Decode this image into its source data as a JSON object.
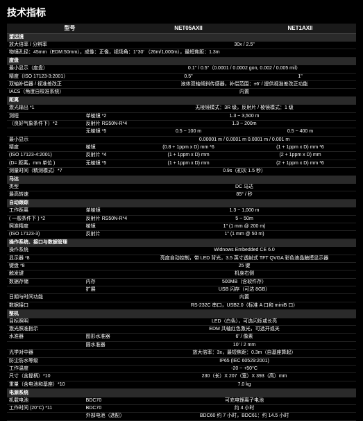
{
  "title": "技术指标",
  "models": {
    "label": "型号",
    "a": "NET05AXII",
    "b": "NET1AXII"
  },
  "sections": [
    {
      "type": "section",
      "label": "望远镜"
    },
    {
      "type": "row",
      "label": "放大倍率 / 分辨率",
      "sub": "",
      "val": "30x / 2.5\""
    },
    {
      "type": "row",
      "label": "物镜孔径：45mm（EDM:50mm），成像：正像，视场角：1°30'  （26m/1,000m），最短焦距：1.3m",
      "full": true
    },
    {
      "type": "section",
      "label": "度盘"
    },
    {
      "type": "row",
      "label": "最小显示（度盘）",
      "sub": "",
      "a": "0.1\" / 0.5\"（0.0001 / 0.0002 gon, 0.002 / 0.005 mil）",
      "b": "",
      "span": true
    },
    {
      "type": "row",
      "label": "精度（ISO 17123-3:2001）",
      "sub": "",
      "a": "0.5\"",
      "b": "1\""
    },
    {
      "type": "row",
      "label": "双轴补偿器 / 视准差改正",
      "sub": "",
      "val": "液体双轴倾斜传感器，补偿范围：±6' / 提供视准差改正功能"
    },
    {
      "type": "row",
      "label": "IACS（角度自校准系统）",
      "sub": "",
      "val": "内置"
    },
    {
      "type": "section",
      "label": "距离"
    },
    {
      "type": "row",
      "label": "激光输出 *1",
      "sub": "",
      "val": "无棱镜模式：3R 级，反射片 / 棱镜模式：1 级"
    },
    {
      "type": "row",
      "label": "测程",
      "sub": "单棱镜 *2",
      "a": "1.3 ~ 3,500 m",
      "b": "",
      "span": true
    },
    {
      "type": "row",
      "label": "（良好气象条件下）*2",
      "sub": "反射片 RS50N-R*4",
      "a": "1.3 ~  200m",
      "b": "",
      "span": true
    },
    {
      "type": "row",
      "label": "",
      "sub": "无棱镜 *5",
      "a": "0.5 ~ 100 m",
      "b": "0.5 ~ 400 m"
    },
    {
      "type": "row",
      "label": "最小显示",
      "sub": "",
      "val": "0.00001 m / 0.0001 m             0.0001 m / 0.001 m"
    },
    {
      "type": "row",
      "label": "精度",
      "sub": "棱镜",
      "a": "(0.8 + 1ppm x D) mm *6",
      "b": "(1 + 1ppm x D) mm *6"
    },
    {
      "type": "row",
      "label": "(ISO 17123-4:2001)",
      "sub": "反射片 *4",
      "a": "(1 + 1ppm x D) mm",
      "b": "(2 + 1ppm x D) mm"
    },
    {
      "type": "row",
      "label": "(D= 距离，mm 单位 )",
      "sub": "无棱镜 *5",
      "a": "(1 + 1ppm x D) mm",
      "b": "(2 + 1ppm x D) mm *6"
    },
    {
      "type": "row",
      "label": "测量时间（精测模式）*7",
      "sub": "",
      "val": "0.9s（初次 1.5 秒）"
    },
    {
      "type": "section",
      "label": "马达"
    },
    {
      "type": "row",
      "label": "类型",
      "sub": "",
      "val": "DC 马达"
    },
    {
      "type": "row",
      "label": "最高转速",
      "sub": "",
      "val": "85° / 秒"
    },
    {
      "type": "section",
      "label": "自动跟踪"
    },
    {
      "type": "row",
      "label": "工作距离",
      "sub": "单棱镜",
      "val": "1.3 ~ 1,000 m"
    },
    {
      "type": "row",
      "label": "( 一般条件下 ) *2",
      "sub": "反射片 RS50N-R*4",
      "val": "5 ~ 50m"
    },
    {
      "type": "row",
      "label": "照准精度",
      "sub": "棱镜",
      "val": "1\" (1 mm @ 200 m)"
    },
    {
      "type": "row",
      "label": "(ISO 17123-3)",
      "sub": "反射片",
      "val": "1\" (1 mm @ 50 m)"
    },
    {
      "type": "section",
      "label": "操作系统、接口与数据管理"
    },
    {
      "type": "row",
      "label": "操作系统",
      "sub": "",
      "val": "Widnows Embedded CE 6.0"
    },
    {
      "type": "row",
      "label": "显示器 *8",
      "sub": "",
      "val": "亮度自动控制，带 LED 背光，3.5 英寸透射式 TFT QVGA 彩色液晶触摸显示器"
    },
    {
      "type": "row",
      "label": "键盘 *8",
      "sub": "",
      "val": "25 键"
    },
    {
      "type": "row",
      "label": "触发键",
      "sub": "",
      "val": "机身右侧"
    },
    {
      "type": "row",
      "label": "数据存储",
      "sub": "内存",
      "val": "500MB（含软件存）"
    },
    {
      "type": "row",
      "label": "",
      "sub": "扩展",
      "val": "USB 闪存（可达 8GB）"
    },
    {
      "type": "row",
      "label": "日期与时间功能",
      "sub": "",
      "val": "内置"
    },
    {
      "type": "row",
      "label": "数据接口",
      "sub": "",
      "val": "RS-232C 串口，USB2.0（标准 A 口和 miniB 口）"
    },
    {
      "type": "section",
      "label": "整机"
    },
    {
      "type": "row",
      "label": "目标照明",
      "sub": "",
      "val": "LED（白色），可选闪烁或长亮"
    },
    {
      "type": "row",
      "label": "激光照准指示",
      "sub": "",
      "val": "EDM 共轴红色激光，可选开或关"
    },
    {
      "type": "row",
      "label": "水准器",
      "sub": "图形水准器",
      "val": "6' /  像素"
    },
    {
      "type": "row",
      "label": "",
      "sub": "圆水准器",
      "val": "10' / 2 mm"
    },
    {
      "type": "row",
      "label": "光学对中器",
      "sub": "",
      "val": "放大倍率：3x，最短焦距：0.3m（自基座算起）"
    },
    {
      "type": "row",
      "label": "防尘防水等级",
      "sub": "",
      "val": "IP65 (IEC 60529:2001)"
    },
    {
      "type": "row",
      "label": "工作温度",
      "sub": "",
      "val": "-20 ~ +50°C"
    },
    {
      "type": "row",
      "label": "尺寸（含提柄）*10",
      "sub": "",
      "val": "230（长）X 207（宽）X 393（高）mm"
    },
    {
      "type": "row",
      "label": "重量（含电池和基座）*10",
      "sub": "",
      "val": "7.0 kg"
    },
    {
      "type": "section",
      "label": "电源系统"
    },
    {
      "type": "row",
      "label": "机载电池",
      "sub": "BDC70",
      "val": "可充电锂离子电池"
    },
    {
      "type": "row",
      "label": "工作时间 (20°C) *11",
      "sub": "BDC70",
      "val": "约 4 小时"
    },
    {
      "type": "row",
      "label": "",
      "sub": "外部电池（选配）",
      "val": "BDC60 约 7 小时，BDC61：约 14.5 小时"
    }
  ]
}
